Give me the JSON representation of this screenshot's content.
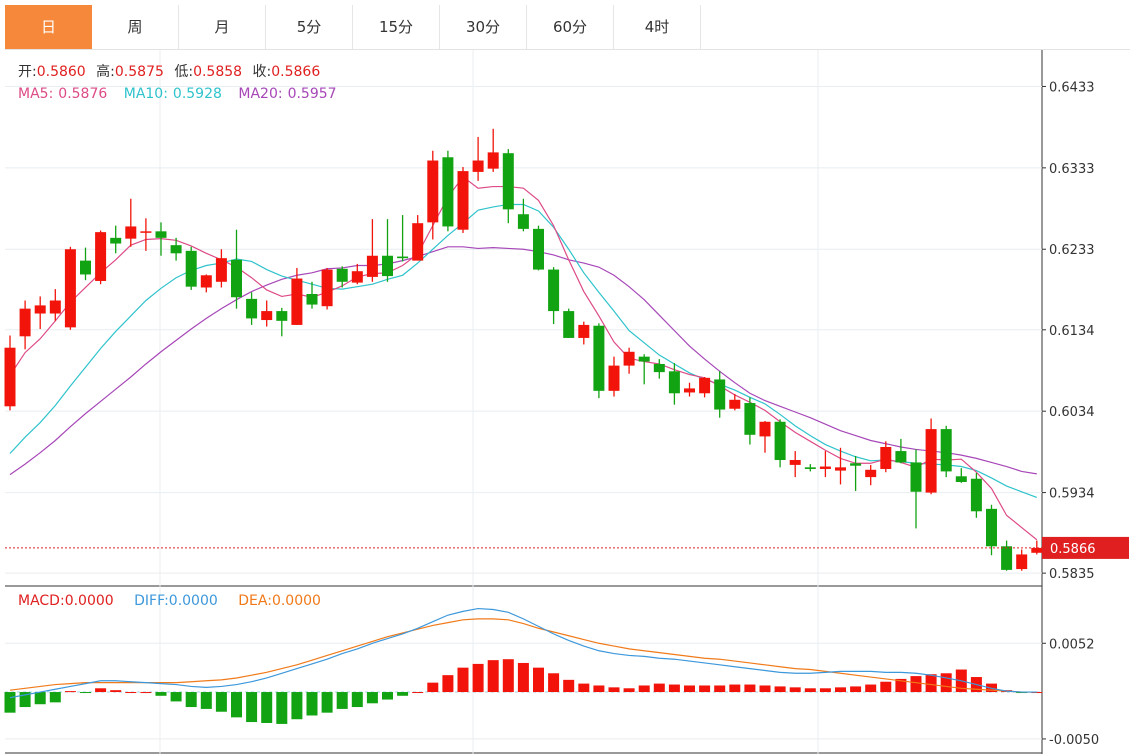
{
  "tabs": [
    {
      "label": "日",
      "active": true
    },
    {
      "label": "周",
      "active": false
    },
    {
      "label": "月",
      "active": false
    },
    {
      "label": "5分",
      "active": false
    },
    {
      "label": "15分",
      "active": false
    },
    {
      "label": "30分",
      "active": false
    },
    {
      "label": "60分",
      "active": false
    },
    {
      "label": "4时",
      "active": false
    }
  ],
  "colors": {
    "up": "#f2140a",
    "down": "#12a312",
    "ma5": "#dd4b87",
    "ma10": "#2fc3cc",
    "ma20": "#a747b8",
    "diff": "#3d98db",
    "dea": "#f07a1a",
    "grid": "#e8eef2",
    "price_line": "#e02020"
  },
  "info": {
    "open_label": "开:",
    "open_value": "0.5860",
    "high_label": "高:",
    "high_value": "0.5875",
    "low_label": "低:",
    "low_value": "0.5858",
    "close_label": "收:",
    "close_value": "0.5866",
    "ma5_label": "MA5:",
    "ma5_value": "0.5876",
    "ma10_label": "MA10:",
    "ma10_value": "0.5928",
    "ma20_label": "MA20:",
    "ma20_value": "0.5957"
  },
  "macd_info": {
    "macd_label": "MACD:",
    "macd_value": "0.0000",
    "diff_label": "DIFF:",
    "diff_value": "0.0000",
    "dea_label": "DEA:",
    "dea_value": "0.0000"
  },
  "chart_data": {
    "type": "candlestick",
    "price_axis": {
      "ticks": [
        "0.6433",
        "0.6333",
        "0.6233",
        "0.6134",
        "0.6034",
        "0.5934",
        "0.5835"
      ],
      "ylim": [
        0.58192,
        0.64778
      ],
      "current_price": "0.5866"
    },
    "macd_axis": {
      "ticks": [
        "0.0052",
        "-0.0050"
      ],
      "ylim": [
        -0.0065,
        0.0112
      ]
    },
    "candles": [
      [
        0.604,
        0.6127,
        0.6035,
        0.6112
      ],
      [
        0.6126,
        0.617,
        0.611,
        0.616
      ],
      [
        0.6154,
        0.6175,
        0.6135,
        0.6164
      ],
      [
        0.6154,
        0.6184,
        0.6145,
        0.617
      ],
      [
        0.6137,
        0.6236,
        0.6134,
        0.6233
      ],
      [
        0.6219,
        0.6235,
        0.6195,
        0.6202
      ],
      [
        0.6194,
        0.6256,
        0.619,
        0.6254
      ],
      [
        0.6247,
        0.6262,
        0.6228,
        0.624
      ],
      [
        0.6246,
        0.6295,
        0.6236,
        0.6261
      ],
      [
        0.6255,
        0.6271,
        0.6231,
        0.6255
      ],
      [
        0.6255,
        0.6266,
        0.6225,
        0.6247
      ],
      [
        0.6238,
        0.6247,
        0.6219,
        0.6228
      ],
      [
        0.6231,
        0.6236,
        0.6183,
        0.6187
      ],
      [
        0.6186,
        0.6202,
        0.618,
        0.6201
      ],
      [
        0.6193,
        0.6233,
        0.6186,
        0.6222
      ],
      [
        0.622,
        0.6257,
        0.616,
        0.6174
      ],
      [
        0.6172,
        0.618,
        0.614,
        0.6148
      ],
      [
        0.6146,
        0.617,
        0.6138,
        0.6157
      ],
      [
        0.6157,
        0.6161,
        0.6126,
        0.6145
      ],
      [
        0.614,
        0.621,
        0.614,
        0.6197
      ],
      [
        0.6178,
        0.6193,
        0.616,
        0.6165
      ],
      [
        0.6163,
        0.621,
        0.6159,
        0.6208
      ],
      [
        0.6209,
        0.6212,
        0.6186,
        0.6193
      ],
      [
        0.6192,
        0.6215,
        0.619,
        0.6206
      ],
      [
        0.6199,
        0.627,
        0.6193,
        0.6225
      ],
      [
        0.6225,
        0.627,
        0.6193,
        0.62
      ],
      [
        0.6224,
        0.6275,
        0.6218,
        0.6222
      ],
      [
        0.6219,
        0.6275,
        0.622,
        0.6265
      ],
      [
        0.6266,
        0.6354,
        0.6245,
        0.6342
      ],
      [
        0.6346,
        0.6354,
        0.6255,
        0.6261
      ],
      [
        0.6257,
        0.6334,
        0.6253,
        0.6329
      ],
      [
        0.6328,
        0.6371,
        0.6317,
        0.6342
      ],
      [
        0.6332,
        0.6381,
        0.6328,
        0.6352
      ],
      [
        0.6351,
        0.6356,
        0.6265,
        0.6282
      ],
      [
        0.6276,
        0.6295,
        0.6255,
        0.6258
      ],
      [
        0.6258,
        0.6262,
        0.6207,
        0.6208
      ],
      [
        0.6208,
        0.6211,
        0.6141,
        0.6157
      ],
      [
        0.6157,
        0.616,
        0.6124,
        0.6124
      ],
      [
        0.6124,
        0.6144,
        0.6116,
        0.614
      ],
      [
        0.6139,
        0.6142,
        0.605,
        0.6059
      ],
      [
        0.6059,
        0.6101,
        0.6052,
        0.609
      ],
      [
        0.609,
        0.6112,
        0.608,
        0.6107
      ],
      [
        0.6101,
        0.6104,
        0.6067,
        0.6095
      ],
      [
        0.6092,
        0.6098,
        0.6074,
        0.6082
      ],
      [
        0.6083,
        0.6093,
        0.6042,
        0.6056
      ],
      [
        0.6057,
        0.6069,
        0.6052,
        0.6062
      ],
      [
        0.6056,
        0.6076,
        0.6051,
        0.6075
      ],
      [
        0.6073,
        0.6083,
        0.6026,
        0.6036
      ],
      [
        0.6037,
        0.6055,
        0.6035,
        0.6048
      ],
      [
        0.6044,
        0.6051,
        0.5993,
        0.6005
      ],
      [
        0.6003,
        0.6022,
        0.5983,
        0.6021
      ],
      [
        0.6021,
        0.6024,
        0.5965,
        0.5974
      ],
      [
        0.5968,
        0.5985,
        0.5953,
        0.5974
      ],
      [
        0.5965,
        0.5969,
        0.596,
        0.5963
      ],
      [
        0.5963,
        0.5985,
        0.5953,
        0.5966
      ],
      [
        0.5961,
        0.5989,
        0.5944,
        0.5965
      ],
      [
        0.597,
        0.5979,
        0.5936,
        0.5967
      ],
      [
        0.5953,
        0.5968,
        0.5943,
        0.5962
      ],
      [
        0.5963,
        0.5997,
        0.5959,
        0.599
      ],
      [
        0.5985,
        0.6,
        0.597,
        0.5971
      ],
      [
        0.5971,
        0.5987,
        0.589,
        0.5935
      ],
      [
        0.5934,
        0.6025,
        0.5932,
        0.6012
      ],
      [
        0.6012,
        0.6016,
        0.5953,
        0.596
      ],
      [
        0.5954,
        0.5964,
        0.5946,
        0.5947
      ],
      [
        0.5951,
        0.5958,
        0.5903,
        0.5911
      ],
      [
        0.5914,
        0.5919,
        0.5857,
        0.5868
      ],
      [
        0.5868,
        0.5875,
        0.5838,
        0.5839
      ],
      [
        0.584,
        0.5864,
        0.5838,
        0.5858
      ],
      [
        0.586,
        0.5875,
        0.5858,
        0.5866
      ]
    ],
    "ma5": [
      0.6078,
      0.6106,
      0.6123,
      0.6145,
      0.6168,
      0.6186,
      0.6204,
      0.622,
      0.6238,
      0.6245,
      0.6246,
      0.6244,
      0.6237,
      0.6228,
      0.622,
      0.6211,
      0.6198,
      0.6183,
      0.6175,
      0.6178,
      0.6174,
      0.618,
      0.6188,
      0.6199,
      0.6203,
      0.6204,
      0.6213,
      0.6227,
      0.6262,
      0.6297,
      0.6322,
      0.6308,
      0.631,
      0.631,
      0.6308,
      0.6293,
      0.6262,
      0.622,
      0.6181,
      0.6151,
      0.6119,
      0.6099,
      0.6095,
      0.6092,
      0.6085,
      0.6079,
      0.6075,
      0.6065,
      0.6054,
      0.6045,
      0.6035,
      0.6021,
      0.6008,
      0.5997,
      0.5986,
      0.5976,
      0.597,
      0.597,
      0.5975,
      0.5971,
      0.5965,
      0.5975,
      0.5974,
      0.5975,
      0.5959,
      0.5939,
      0.5906,
      0.5891,
      0.5876
    ],
    "ma10": [
      0.5982,
      0.6002,
      0.602,
      0.6041,
      0.6065,
      0.6088,
      0.6111,
      0.6132,
      0.6151,
      0.617,
      0.6185,
      0.6198,
      0.6207,
      0.6213,
      0.6216,
      0.6221,
      0.6218,
      0.6208,
      0.62,
      0.6195,
      0.619,
      0.6185,
      0.6184,
      0.6187,
      0.619,
      0.6196,
      0.6201,
      0.6216,
      0.6233,
      0.625,
      0.6265,
      0.6281,
      0.6285,
      0.6288,
      0.6288,
      0.628,
      0.626,
      0.6233,
      0.6204,
      0.618,
      0.6157,
      0.6133,
      0.6118,
      0.6103,
      0.6092,
      0.6081,
      0.6073,
      0.6067,
      0.606,
      0.6051,
      0.6043,
      0.603,
      0.6016,
      0.6004,
      0.5993,
      0.5985,
      0.5978,
      0.5973,
      0.5974,
      0.5972,
      0.597,
      0.5969,
      0.5968,
      0.5966,
      0.5961,
      0.5952,
      0.5942,
      0.5935,
      0.5928
    ],
    "ma20": [
      0.5956,
      0.5969,
      0.5983,
      0.5998,
      0.6015,
      0.6031,
      0.6046,
      0.6061,
      0.6076,
      0.6092,
      0.6107,
      0.6121,
      0.6135,
      0.6148,
      0.616,
      0.6171,
      0.6181,
      0.6189,
      0.6196,
      0.6201,
      0.6204,
      0.6209,
      0.621,
      0.6213,
      0.6213,
      0.6215,
      0.6219,
      0.6224,
      0.623,
      0.6236,
      0.6236,
      0.6234,
      0.6235,
      0.6234,
      0.6233,
      0.623,
      0.6226,
      0.622,
      0.6216,
      0.6211,
      0.6201,
      0.6187,
      0.6171,
      0.6152,
      0.6133,
      0.6114,
      0.6098,
      0.6083,
      0.6069,
      0.6056,
      0.6047,
      0.604,
      0.6033,
      0.6026,
      0.6018,
      0.601,
      0.6004,
      0.5998,
      0.5994,
      0.599,
      0.5987,
      0.5985,
      0.5983,
      0.598,
      0.5976,
      0.5971,
      0.5966,
      0.596,
      0.5957
    ],
    "macd_hist": [
      -0.0022,
      -0.0016,
      -0.0013,
      -0.0011,
      0.0001,
      -0.0001,
      0.0004,
      0.0002,
      0.0,
      0.0,
      -0.0004,
      -0.001,
      -0.0016,
      -0.0018,
      -0.0021,
      -0.0027,
      -0.0032,
      -0.0033,
      -0.0034,
      -0.0029,
      -0.0025,
      -0.0022,
      -0.0018,
      -0.0016,
      -0.0012,
      -0.0008,
      -0.0004,
      0.0,
      0.001,
      0.0018,
      0.0026,
      0.003,
      0.0034,
      0.0035,
      0.0031,
      0.0026,
      0.002,
      0.0013,
      0.0009,
      0.0007,
      0.0005,
      0.0004,
      0.0007,
      0.0009,
      0.0008,
      0.0007,
      0.0007,
      0.0007,
      0.0008,
      0.0008,
      0.0007,
      0.0006,
      0.0005,
      0.0004,
      0.0004,
      0.0005,
      0.0006,
      0.0008,
      0.0011,
      0.0014,
      0.0017,
      0.0019,
      0.002,
      0.0024,
      0.0016,
      0.0009,
      0.0002,
      -0.0001,
      0.0
    ],
    "diff": [
      -0.0006,
      -0.0003,
      0.0,
      0.0003,
      0.0006,
      0.0009,
      0.0012,
      0.0012,
      0.0011,
      0.001,
      0.0009,
      0.0008,
      0.0006,
      0.0005,
      0.0006,
      0.0008,
      0.0011,
      0.0015,
      0.002,
      0.0025,
      0.003,
      0.0035,
      0.0041,
      0.0046,
      0.0052,
      0.0057,
      0.0062,
      0.0068,
      0.0075,
      0.0082,
      0.0086,
      0.0089,
      0.0088,
      0.0085,
      0.0078,
      0.007,
      0.0062,
      0.0055,
      0.0049,
      0.0044,
      0.0041,
      0.0039,
      0.0038,
      0.0036,
      0.0035,
      0.0033,
      0.0031,
      0.0029,
      0.0027,
      0.0025,
      0.0023,
      0.0021,
      0.002,
      0.002,
      0.0021,
      0.0022,
      0.0022,
      0.0022,
      0.0021,
      0.0021,
      0.002,
      0.0018,
      0.0015,
      0.0012,
      0.0008,
      0.0004,
      0.0001,
      0.0,
      0.0
    ],
    "dea": [
      0.0002,
      0.0004,
      0.0006,
      0.0008,
      0.0009,
      0.001,
      0.001,
      0.001,
      0.001,
      0.001,
      0.001,
      0.001,
      0.0011,
      0.0012,
      0.0013,
      0.0015,
      0.0018,
      0.0021,
      0.0025,
      0.0029,
      0.0034,
      0.0039,
      0.0044,
      0.0049,
      0.0054,
      0.0059,
      0.0063,
      0.0067,
      0.0071,
      0.0074,
      0.0077,
      0.0078,
      0.0078,
      0.0077,
      0.0073,
      0.0068,
      0.0064,
      0.006,
      0.0056,
      0.0052,
      0.0049,
      0.0046,
      0.0044,
      0.0042,
      0.004,
      0.0038,
      0.0036,
      0.0035,
      0.0033,
      0.0031,
      0.0029,
      0.0027,
      0.0025,
      0.0024,
      0.0022,
      0.002,
      0.0018,
      0.0016,
      0.0014,
      0.0012,
      0.001,
      0.0008,
      0.0006,
      0.0004,
      0.0003,
      0.0002,
      0.0001,
      0.0,
      0.0
    ]
  }
}
